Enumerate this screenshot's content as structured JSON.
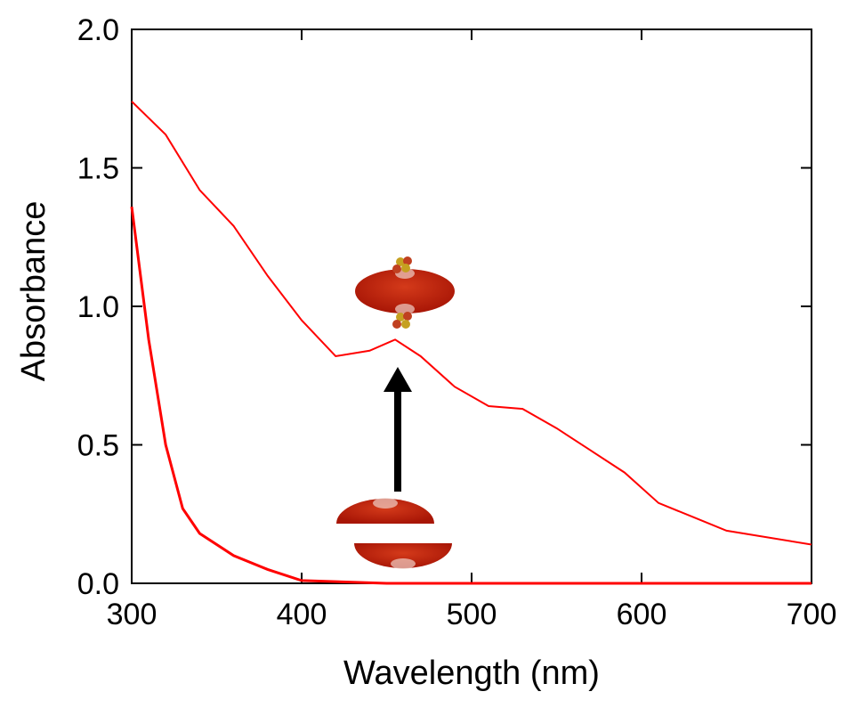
{
  "chart_data": {
    "type": "line",
    "xlabel": "Wavelength (nm)",
    "ylabel": "Absorbance",
    "xlim": [
      300,
      700
    ],
    "xticks": [
      300,
      400,
      500,
      600,
      700
    ],
    "ylim": [
      0,
      2
    ],
    "yticks": [
      {
        "value": 0,
        "label": "0.0"
      },
      {
        "value": 0.5,
        "label": "0.5"
      },
      {
        "value": 1,
        "label": "1.0"
      },
      {
        "value": 1.5,
        "label": "1.5"
      },
      {
        "value": 2,
        "label": "2.0"
      }
    ],
    "series": [
      {
        "color": "#ff0000",
        "x": [
          300,
          320,
          340,
          360,
          380,
          400,
          420,
          440,
          455,
          470,
          490,
          510,
          530,
          550,
          570,
          590,
          610,
          630,
          650,
          670,
          700
        ],
        "values": [
          1.74,
          1.62,
          1.42,
          1.29,
          1.11,
          0.95,
          0.82,
          0.84,
          0.88,
          0.82,
          0.71,
          0.64,
          0.63,
          0.56,
          0.48,
          0.4,
          0.29,
          0.24,
          0.19,
          0.17,
          0.14
        ]
      },
      {
        "color": "#ff0000",
        "x": [
          300,
          310,
          320,
          330,
          340,
          360,
          380,
          400,
          450,
          500,
          600,
          700
        ],
        "values": [
          1.36,
          0.88,
          0.5,
          0.27,
          0.18,
          0.1,
          0.05,
          0.01,
          0.0,
          0.0,
          0.0,
          0.0
        ]
      }
    ]
  }
}
